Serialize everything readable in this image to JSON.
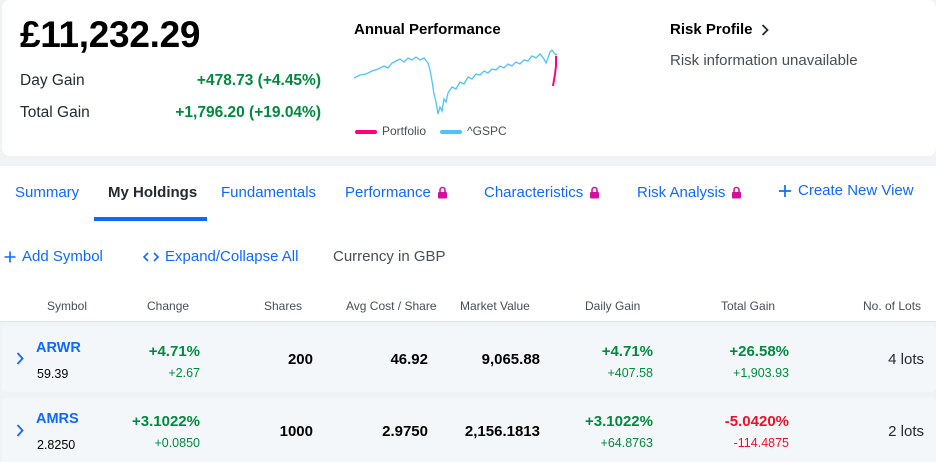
{
  "summary": {
    "total_value": "£11,232.29",
    "day_gain_label": "Day Gain",
    "day_gain_value": "+478.73 (+4.45%)",
    "total_gain_label": "Total Gain",
    "total_gain_value": "+1,796.20 (+19.04%)"
  },
  "performance": {
    "title": "Annual Performance",
    "legend": [
      {
        "name": "Portfolio",
        "color": "#ff0080"
      },
      {
        "name": "^GSPC",
        "color": "#4fc3f7"
      }
    ]
  },
  "risk": {
    "title": "Risk Profile",
    "text": "Risk information unavailable"
  },
  "tabs": [
    {
      "label": "Summary",
      "locked": false
    },
    {
      "label": "My Holdings",
      "locked": false,
      "active": true
    },
    {
      "label": "Fundamentals",
      "locked": false
    },
    {
      "label": "Performance",
      "locked": true
    },
    {
      "label": "Characteristics",
      "locked": true
    },
    {
      "label": "Risk Analysis",
      "locked": true
    },
    {
      "label": "Create New View",
      "locked": false
    }
  ],
  "toolbar": {
    "add_symbol": "Add Symbol",
    "expand_collapse": "Expand/Collapse All",
    "currency": "Currency in GBP"
  },
  "table": {
    "headers": [
      "Symbol",
      "Change",
      "Shares",
      "Avg Cost / Share",
      "Market Value",
      "Daily Gain",
      "Total Gain",
      "No. of Lots"
    ],
    "rows": [
      {
        "symbol": "ARWR",
        "price": "59.39",
        "change_pct": "+4.71%",
        "change_abs": "+2.67",
        "shares": "200",
        "avg_cost": "46.92",
        "market_value": "9,065.88",
        "daily_gain_pct": "+4.71%",
        "daily_gain_abs": "+407.58",
        "total_gain_pct": "+26.58%",
        "total_gain_abs": "+1,903.93",
        "lots": "4 lots"
      },
      {
        "symbol": "AMRS",
        "price": "2.8250",
        "change_pct": "+3.1022%",
        "change_abs": "+0.0850",
        "shares": "1000",
        "avg_cost": "2.9750",
        "market_value": "2,156.1813",
        "daily_gain_pct": "+3.1022%",
        "daily_gain_abs": "+64.8763",
        "total_gain_pct": "-5.0420%",
        "total_gain_abs": "-114.4875",
        "lots": "2 lots"
      }
    ]
  },
  "colors": {
    "accent": "#0f69ff",
    "positive": "#008a3e",
    "negative": "#eb0f29"
  }
}
